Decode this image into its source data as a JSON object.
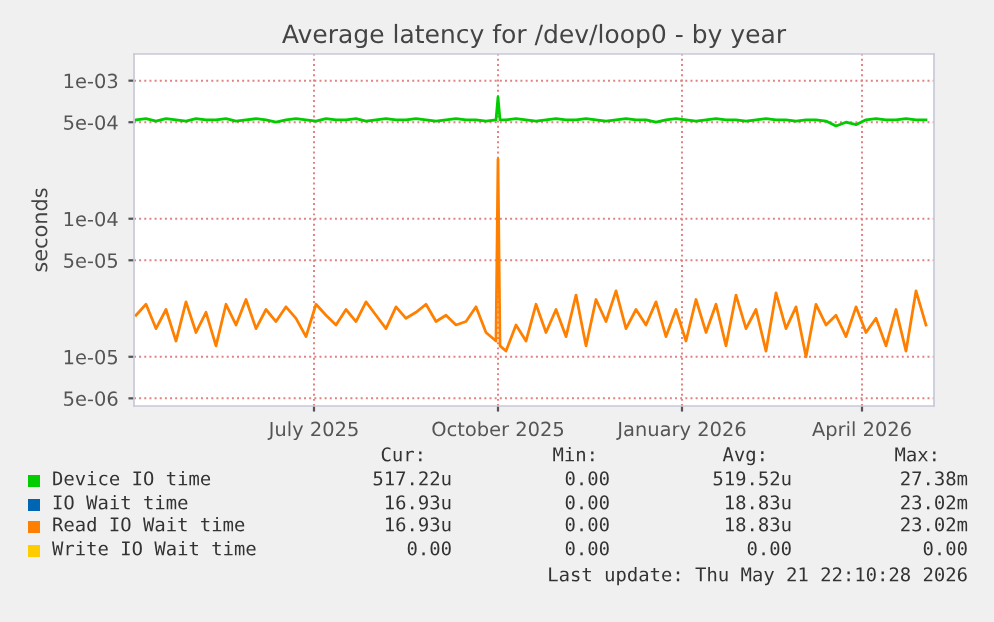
{
  "chart_data": {
    "type": "line",
    "title": "Average latency for /dev/loop0 - by year",
    "ylabel": "seconds",
    "x": [
      "2025-04-18",
      "2025-04-23",
      "2025-04-28",
      "2025-05-03",
      "2025-05-08",
      "2025-05-13",
      "2025-05-18",
      "2025-05-23",
      "2025-05-28",
      "2025-06-02",
      "2025-06-07",
      "2025-06-12",
      "2025-06-17",
      "2025-06-22",
      "2025-06-27",
      "2025-07-02",
      "2025-07-07",
      "2025-07-12",
      "2025-07-17",
      "2025-07-22",
      "2025-07-27",
      "2025-08-01",
      "2025-08-06",
      "2025-08-11",
      "2025-08-16",
      "2025-08-21",
      "2025-08-26",
      "2025-08-31",
      "2025-09-05",
      "2025-09-10",
      "2025-09-15",
      "2025-09-20",
      "2025-09-25",
      "2025-09-30",
      "2025-10-05",
      "2025-10-10",
      "2025-10-15",
      "2025-10-16",
      "2025-10-17",
      "2025-10-20",
      "2025-10-25",
      "2025-10-30",
      "2025-11-04",
      "2025-11-09",
      "2025-11-14",
      "2025-11-19",
      "2025-11-24",
      "2025-11-29",
      "2025-12-04",
      "2025-12-09",
      "2025-12-14",
      "2025-12-19",
      "2025-12-24",
      "2025-12-29",
      "2026-01-03",
      "2026-01-08",
      "2026-01-13",
      "2026-01-18",
      "2026-01-23",
      "2026-01-28",
      "2026-02-02",
      "2026-02-07",
      "2026-02-12",
      "2026-02-17",
      "2026-02-22",
      "2026-02-27",
      "2026-03-04",
      "2026-03-09",
      "2026-03-14",
      "2026-03-19",
      "2026-03-24",
      "2026-03-29",
      "2026-04-03",
      "2026-04-08",
      "2026-04-13",
      "2026-04-18",
      "2026-04-23",
      "2026-04-28",
      "2026-05-03",
      "2026-05-08",
      "2026-05-13",
      "2026-05-18"
    ],
    "series": [
      {
        "name": "Device IO time",
        "color": "#00cc00",
        "values": [
          0.00052,
          0.00053,
          0.00051,
          0.00053,
          0.00052,
          0.00051,
          0.00053,
          0.00052,
          0.00052,
          0.00053,
          0.00051,
          0.00052,
          0.00053,
          0.00052,
          0.0005,
          0.00052,
          0.00053,
          0.00052,
          0.00051,
          0.00053,
          0.00052,
          0.00052,
          0.00053,
          0.00051,
          0.00052,
          0.00053,
          0.00052,
          0.00052,
          0.00053,
          0.00052,
          0.00051,
          0.00052,
          0.00053,
          0.00052,
          0.00052,
          0.00051,
          0.00052,
          0.00076,
          0.00052,
          0.00052,
          0.00053,
          0.00052,
          0.00051,
          0.00052,
          0.00053,
          0.00052,
          0.00052,
          0.00053,
          0.00052,
          0.00051,
          0.00052,
          0.00053,
          0.00052,
          0.00052,
          0.0005,
          0.00052,
          0.00053,
          0.00052,
          0.00051,
          0.00052,
          0.00053,
          0.00052,
          0.00052,
          0.00051,
          0.00052,
          0.00053,
          0.00052,
          0.00052,
          0.00051,
          0.00052,
          0.00052,
          0.00051,
          0.00047,
          0.0005,
          0.00048,
          0.00052,
          0.00053,
          0.00052,
          0.00052,
          0.00053,
          0.00052,
          0.00052
        ]
      },
      {
        "name": "IO Wait time",
        "color": "#0066b3",
        "values": [
          null,
          null,
          null,
          null,
          null,
          null,
          null,
          null,
          null,
          null,
          null,
          null,
          null,
          null,
          null,
          null,
          null,
          null,
          null,
          null,
          null,
          null,
          null,
          null,
          null,
          null,
          null,
          null,
          null,
          null,
          null,
          null,
          null,
          null,
          null,
          null,
          null,
          null,
          null,
          null,
          null,
          null,
          null,
          null,
          null,
          null,
          null,
          null,
          null,
          null,
          null,
          null,
          null,
          null,
          null,
          null,
          null,
          null,
          null,
          null,
          null,
          null,
          null,
          null,
          null,
          null,
          null,
          null,
          null,
          null,
          null,
          null,
          null,
          null,
          null,
          null,
          null,
          null,
          null,
          null,
          null,
          null
        ]
      },
      {
        "name": "Read IO Wait time",
        "color": "#ff8000",
        "values": [
          2e-05,
          2.4e-05,
          1.6e-05,
          2.2e-05,
          1.3e-05,
          2.5e-05,
          1.5e-05,
          2.1e-05,
          1.2e-05,
          2.4e-05,
          1.7e-05,
          2.6e-05,
          1.6e-05,
          2.2e-05,
          1.8e-05,
          2.3e-05,
          1.9e-05,
          1.4e-05,
          2.4e-05,
          2e-05,
          1.7e-05,
          2.2e-05,
          1.8e-05,
          2.5e-05,
          2e-05,
          1.6e-05,
          2.3e-05,
          1.9e-05,
          2.1e-05,
          2.4e-05,
          1.8e-05,
          2e-05,
          1.7e-05,
          1.8e-05,
          2.3e-05,
          1.5e-05,
          1.3e-05,
          0.00027,
          1.2e-05,
          1.1e-05,
          1.7e-05,
          1.3e-05,
          2.4e-05,
          1.5e-05,
          2.2e-05,
          1.4e-05,
          2.8e-05,
          1.2e-05,
          2.6e-05,
          1.8e-05,
          3e-05,
          1.6e-05,
          2.2e-05,
          1.7e-05,
          2.5e-05,
          1.4e-05,
          2.2e-05,
          1.3e-05,
          2.6e-05,
          1.5e-05,
          2.4e-05,
          1.2e-05,
          2.8e-05,
          1.6e-05,
          2.2e-05,
          1.1e-05,
          2.9e-05,
          1.6e-05,
          2.3e-05,
          1e-05,
          2.4e-05,
          1.7e-05,
          2e-05,
          1.4e-05,
          2.3e-05,
          1.5e-05,
          1.9e-05,
          1.2e-05,
          2.2e-05,
          1.1e-05,
          3e-05,
          1.7e-05
        ]
      },
      {
        "name": "Write IO Wait time",
        "color": "#ffcc00",
        "values": [
          null,
          null,
          null,
          null,
          null,
          null,
          null,
          null,
          null,
          null,
          null,
          null,
          null,
          null,
          null,
          null,
          null,
          null,
          null,
          null,
          null,
          null,
          null,
          null,
          null,
          null,
          null,
          null,
          null,
          null,
          null,
          null,
          null,
          null,
          null,
          null,
          null,
          null,
          null,
          null,
          null,
          null,
          null,
          null,
          null,
          null,
          null,
          null,
          null,
          null,
          null,
          null,
          null,
          null,
          null,
          null,
          null,
          null,
          null,
          null,
          null,
          null,
          null,
          null,
          null,
          null,
          null,
          null,
          null,
          null,
          null,
          null,
          null,
          null,
          null,
          null,
          null,
          null,
          null,
          null,
          null,
          null
        ]
      }
    ],
    "log": "y",
    "ylim": [
      4.4e-06,
      0.00156
    ],
    "yticks": [
      {
        "value": 5e-06,
        "label": "5e-06"
      },
      {
        "value": 1e-05,
        "label": "1e-05"
      },
      {
        "value": 5e-05,
        "label": "5e-05"
      },
      {
        "value": 0.0001,
        "label": "1e-04"
      },
      {
        "value": 0.0005,
        "label": "5e-04"
      },
      {
        "value": 0.001,
        "label": "1e-03"
      }
    ],
    "xlim": [
      "2025-04-17",
      "2026-05-22"
    ],
    "xticks": [
      {
        "value": "2025-07-16",
        "label": "July 2025"
      },
      {
        "value": "2025-10-16",
        "label": "October 2025"
      },
      {
        "value": "2026-01-16",
        "label": "January 2026"
      },
      {
        "value": "2026-04-16",
        "label": "April 2026"
      }
    ],
    "grid": true,
    "legend": "bottom",
    "annotations": [
      "Cur:",
      "Min:",
      "Avg:",
      "Max:",
      "517.22u",
      "0.00",
      "519.52u",
      "27.38m",
      "16.93u",
      "0.00",
      "18.83u",
      "23.02m",
      "16.93u",
      "0.00",
      "18.83u",
      "23.02m",
      "0.00",
      "0.00",
      "0.00",
      "0.00",
      "Last update: Thu May 21 22:10:28 2026"
    ]
  }
}
